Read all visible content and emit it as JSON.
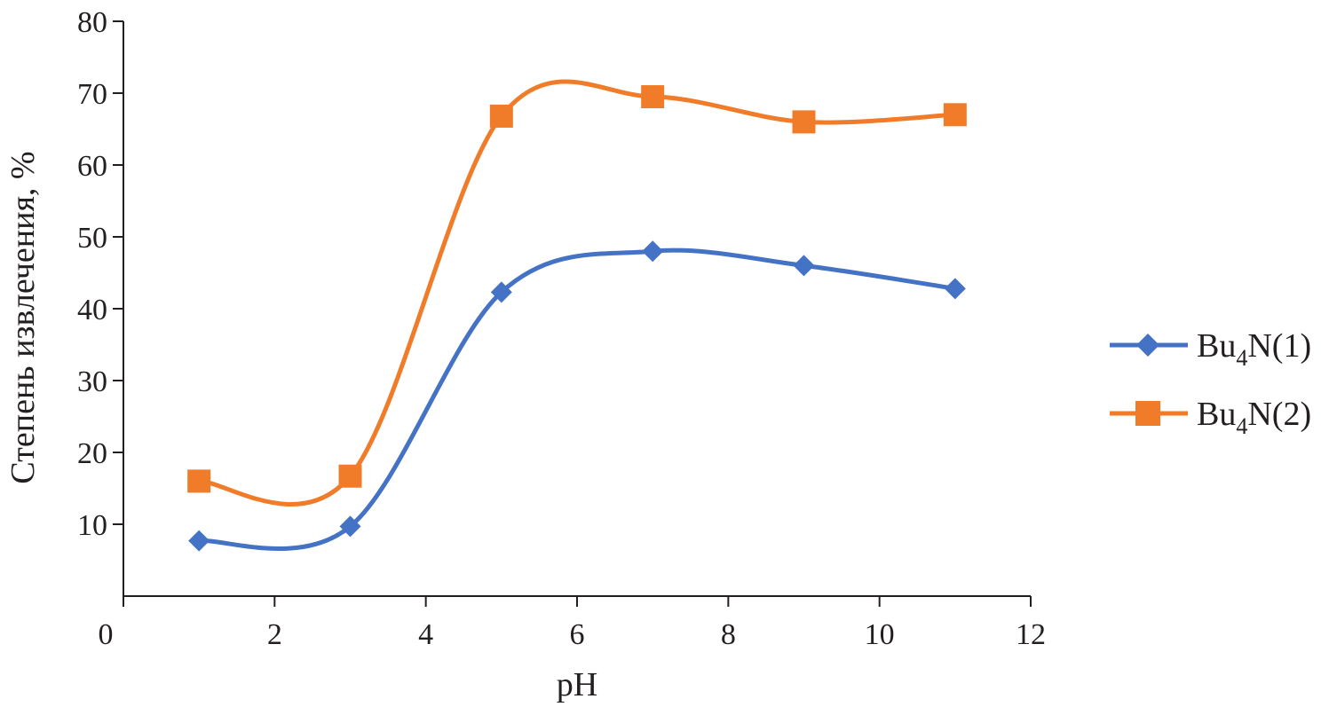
{
  "chart_data": {
    "type": "line",
    "smooth": true,
    "title": "",
    "xlabel": "pH",
    "ylabel": "Степень извлечения, %",
    "xlim": [
      0,
      12
    ],
    "ylim": [
      0,
      80
    ],
    "x_ticks": [
      "0",
      "2",
      "4",
      "6",
      "8",
      "10",
      "12"
    ],
    "y_ticks": [
      "10",
      "20",
      "30",
      "40",
      "50",
      "60",
      "70",
      "80"
    ],
    "grid": false,
    "legend_position": "right",
    "series": [
      {
        "name": "Bu4N(1)",
        "name_main": "Bu",
        "name_sub": "4",
        "name_tail": "N(1)",
        "marker": "diamond",
        "color": "#4472c4",
        "x": [
          1,
          3,
          5,
          7,
          9,
          11
        ],
        "y": [
          7.7,
          9.7,
          42.3,
          48.0,
          46.0,
          42.8
        ]
      },
      {
        "name": "Bu4N(2)",
        "name_main": "Bu",
        "name_sub": "4",
        "name_tail": "N(2)",
        "marker": "square",
        "color": "#f07c2a",
        "x": [
          1,
          3,
          5,
          7,
          9,
          11
        ],
        "y": [
          16.0,
          16.7,
          66.8,
          69.5,
          66.0,
          67.0
        ]
      }
    ]
  }
}
